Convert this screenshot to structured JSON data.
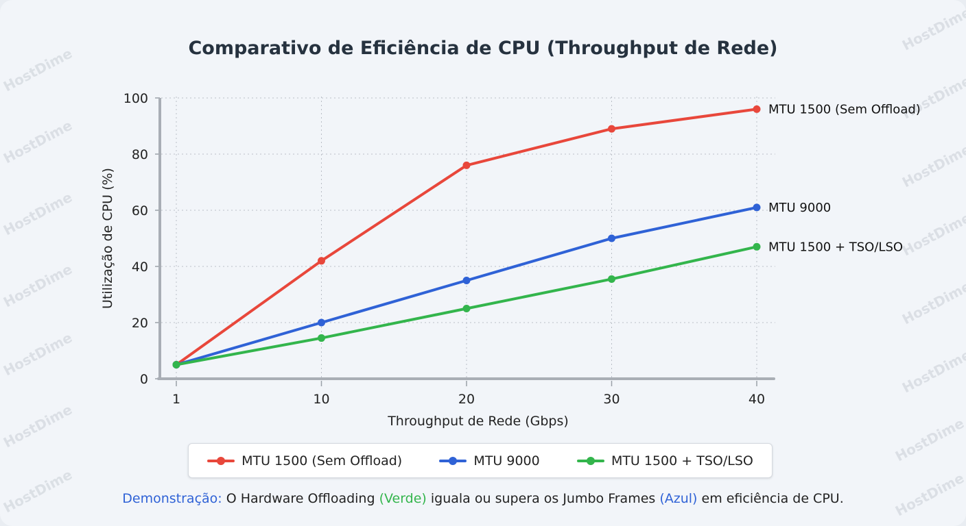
{
  "watermark": "HostDime",
  "chart_data": {
    "type": "line",
    "title": "Comparativo de Eficiência de CPU (Throughput de Rede)",
    "xlabel": "Throughput de Rede (Gbps)",
    "ylabel": "Utilização de CPU (%)",
    "categories": [
      "1",
      "10",
      "20",
      "30",
      "40"
    ],
    "ylim": [
      0,
      100
    ],
    "yticks": [
      "0",
      "20",
      "40",
      "60",
      "80",
      "100"
    ],
    "grid": true,
    "legend_position": "bottom",
    "series": [
      {
        "name": "MTU 1500 (Sem Offload)",
        "color": "#e8473b",
        "values": [
          5,
          42,
          76,
          89,
          96
        ]
      },
      {
        "name": "MTU 9000",
        "color": "#2f62d6",
        "values": [
          5,
          20,
          35,
          50,
          61
        ]
      },
      {
        "name": "MTU 1500 + TSO/LSO",
        "color": "#33b54c",
        "values": [
          5,
          14.5,
          25,
          35.5,
          47
        ]
      }
    ]
  },
  "note": {
    "prefix": "Demonstração:",
    "part1": " O Hardware Offloading ",
    "green": "(Verde)",
    "part2": " iguala ou supera os Jumbo Frames ",
    "blue": "(Azul)",
    "part3": " em eficiência de CPU."
  }
}
